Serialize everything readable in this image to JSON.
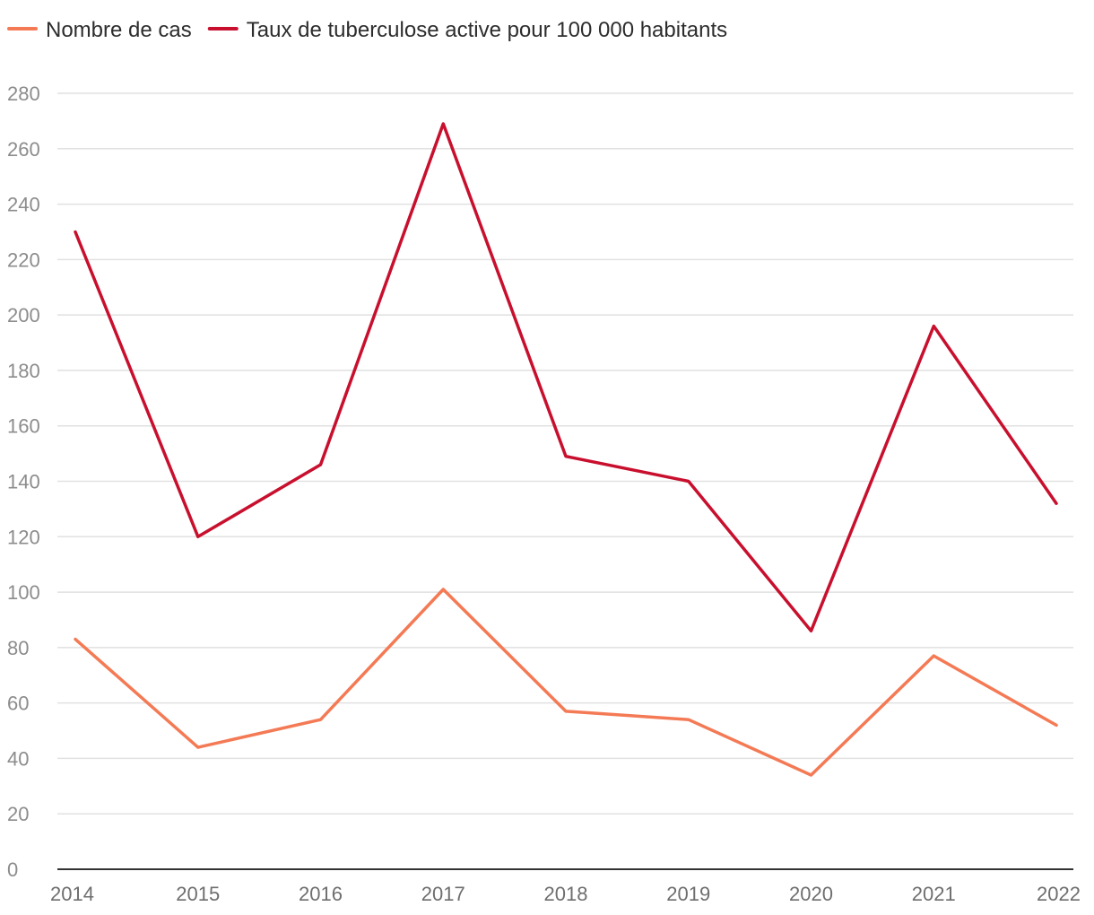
{
  "chart_data": {
    "type": "line",
    "title": "",
    "xlabel": "",
    "ylabel": "",
    "categories": [
      "2014",
      "2015",
      "2016",
      "2017",
      "2018",
      "2019",
      "2020",
      "2021",
      "2022"
    ],
    "ylim": [
      0,
      280
    ],
    "yticks": [
      0,
      20,
      40,
      60,
      80,
      100,
      120,
      140,
      160,
      180,
      200,
      220,
      240,
      260,
      280
    ],
    "grid": true,
    "legend_position": "top-left",
    "series": [
      {
        "name": "Nombre de cas",
        "color": "#f47a55",
        "values": [
          83,
          44,
          54,
          101,
          57,
          54,
          34,
          77,
          52
        ]
      },
      {
        "name": "Taux de tuberculose active pour 100 000 habitants",
        "color": "#c8102e",
        "values": [
          230,
          120,
          146,
          269,
          149,
          140,
          86,
          196,
          132
        ]
      }
    ]
  }
}
